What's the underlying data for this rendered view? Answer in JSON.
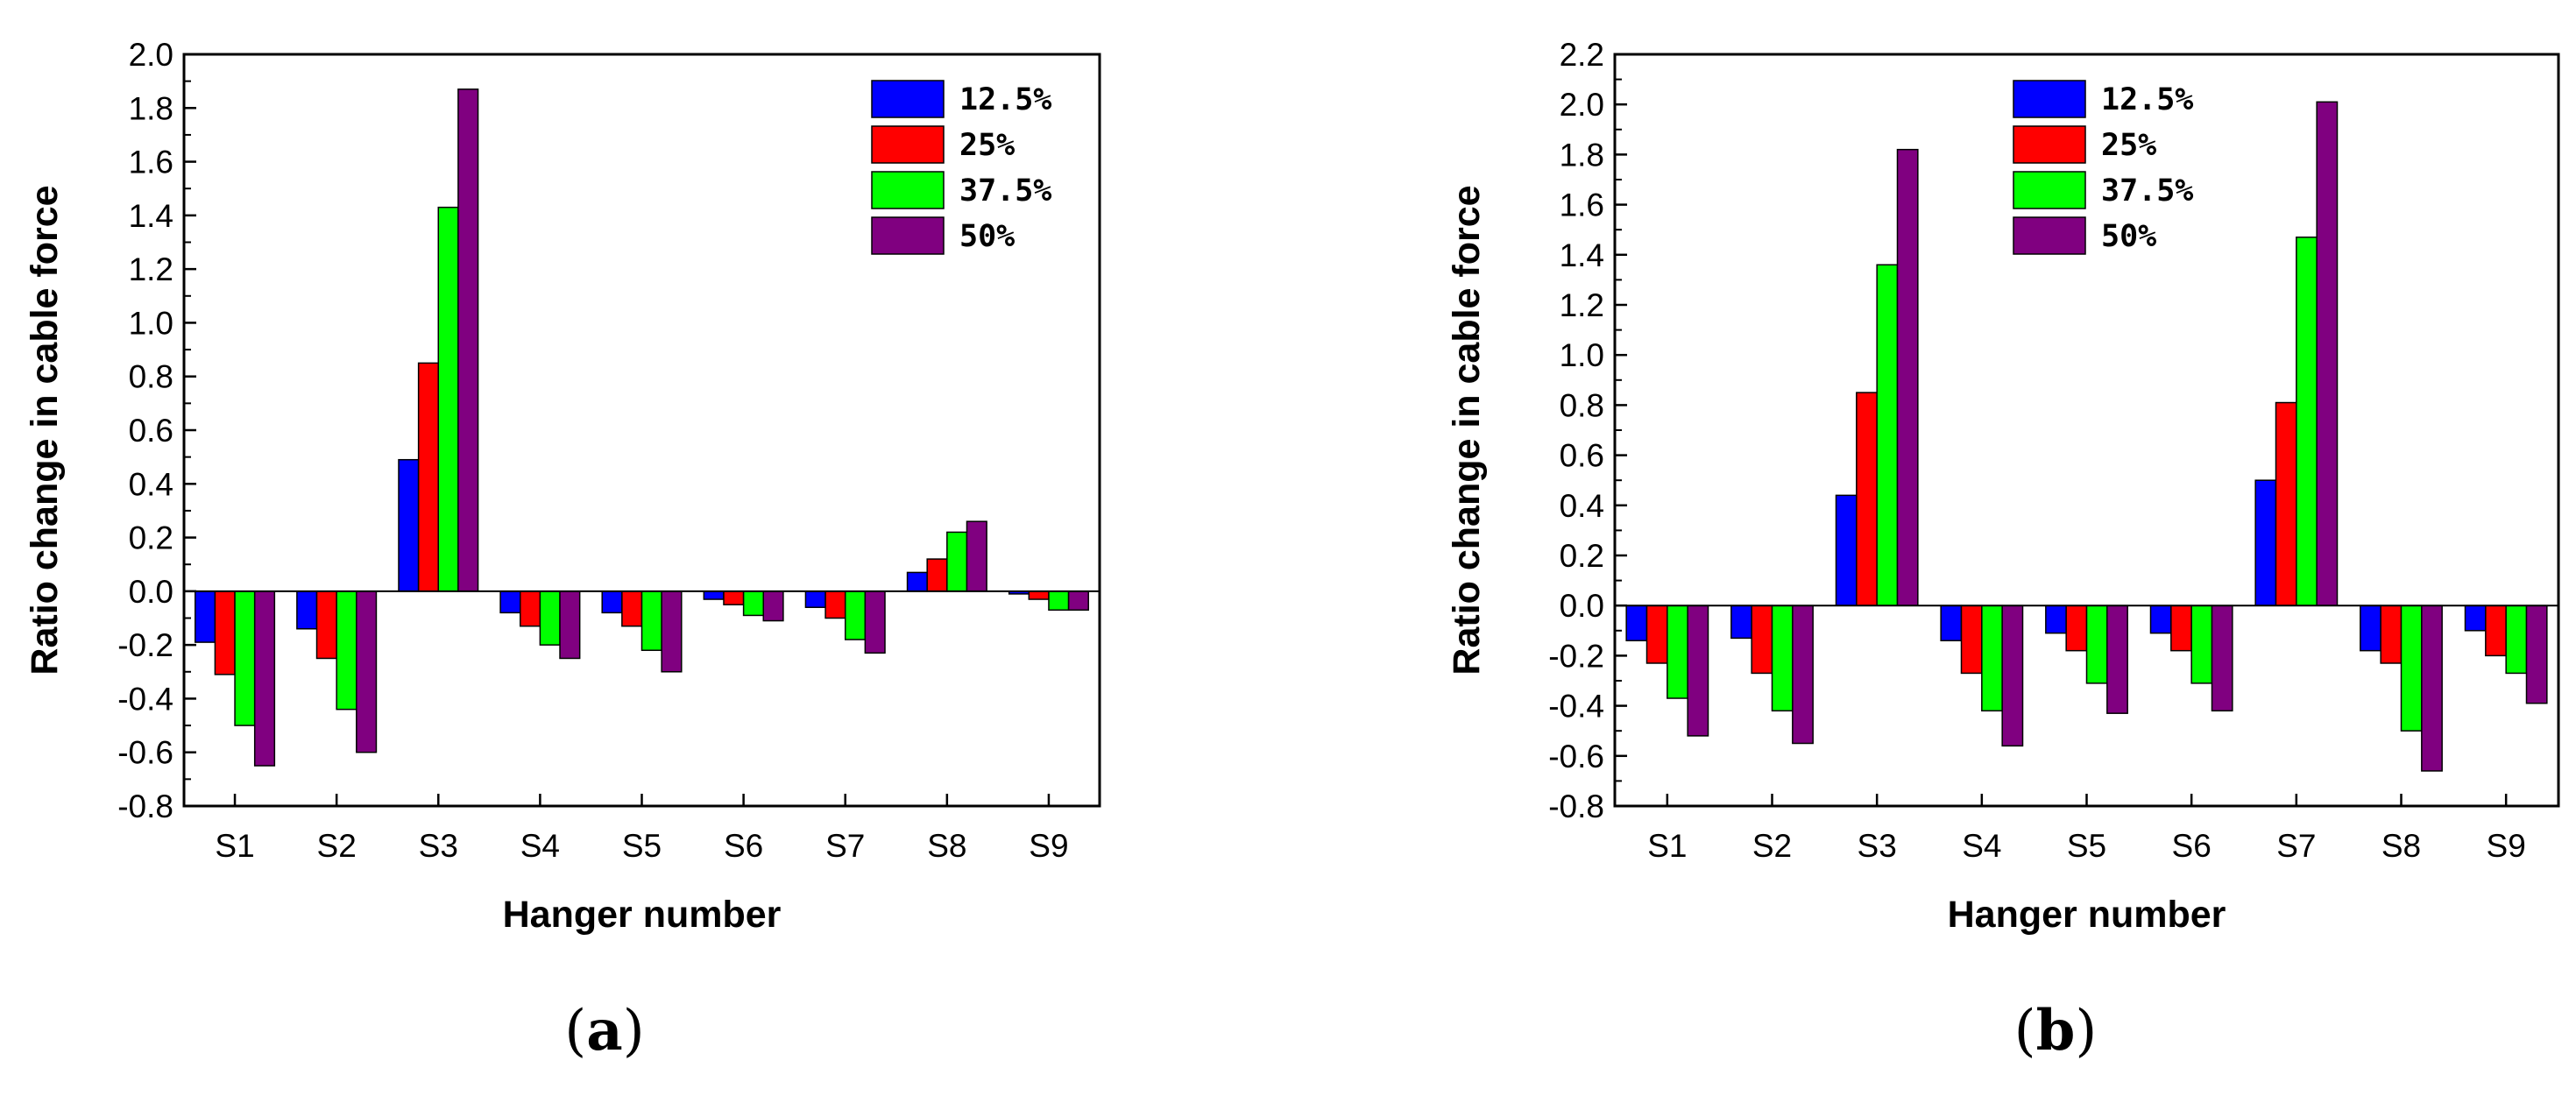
{
  "chart_data": [
    {
      "type": "bar",
      "panel_label": "a",
      "xlabel": "Hanger number",
      "ylabel": "Ratio change in cable force",
      "categories": [
        "S1",
        "S2",
        "S3",
        "S4",
        "S5",
        "S6",
        "S7",
        "S8",
        "S9"
      ],
      "ylim": [
        -0.8,
        2.0
      ],
      "yticks": [
        "-0.8",
        "-0.6",
        "-0.4",
        "-0.2",
        "0.0",
        "0.2",
        "0.4",
        "0.6",
        "0.8",
        "1.0",
        "1.2",
        "1.4",
        "1.6",
        "1.8",
        "2.0"
      ],
      "grid": false,
      "legend_position": "top-right",
      "series": [
        {
          "name": "12.5%",
          "color": "#0000ff",
          "values": [
            -0.19,
            -0.14,
            0.49,
            -0.08,
            -0.08,
            -0.03,
            -0.06,
            0.07,
            -0.01
          ]
        },
        {
          "name": "25%",
          "color": "#ff0000",
          "values": [
            -0.31,
            -0.25,
            0.85,
            -0.13,
            -0.13,
            -0.05,
            -0.1,
            0.12,
            -0.03
          ]
        },
        {
          "name": "37.5%",
          "color": "#00ff00",
          "values": [
            -0.5,
            -0.44,
            1.43,
            -0.2,
            -0.22,
            -0.09,
            -0.18,
            0.22,
            -0.07
          ]
        },
        {
          "name": "50%",
          "color": "#800080",
          "values": [
            -0.65,
            -0.6,
            1.87,
            -0.25,
            -0.3,
            -0.11,
            -0.23,
            0.26,
            -0.07
          ]
        }
      ]
    },
    {
      "type": "bar",
      "panel_label": "b",
      "xlabel": "Hanger number",
      "ylabel": "Ratio change in cable force",
      "categories": [
        "S1",
        "S2",
        "S3",
        "S4",
        "S5",
        "S6",
        "S7",
        "S8",
        "S9"
      ],
      "ylim": [
        -0.8,
        2.2
      ],
      "yticks": [
        "-0.8",
        "-0.6",
        "-0.4",
        "-0.2",
        "0.0",
        "0.2",
        "0.4",
        "0.6",
        "0.8",
        "1.0",
        "1.2",
        "1.4",
        "1.6",
        "1.8",
        "2.0",
        "2.2"
      ],
      "grid": false,
      "legend_position": "top-center",
      "series": [
        {
          "name": "12.5%",
          "color": "#0000ff",
          "values": [
            -0.14,
            -0.13,
            0.44,
            -0.14,
            -0.11,
            -0.11,
            0.5,
            -0.18,
            -0.1
          ]
        },
        {
          "name": "25%",
          "color": "#ff0000",
          "values": [
            -0.23,
            -0.27,
            0.85,
            -0.27,
            -0.18,
            -0.18,
            0.81,
            -0.23,
            -0.2
          ]
        },
        {
          "name": "37.5%",
          "color": "#00ff00",
          "values": [
            -0.37,
            -0.42,
            1.36,
            -0.42,
            -0.31,
            -0.31,
            1.47,
            -0.5,
            -0.27
          ]
        },
        {
          "name": "50%",
          "color": "#800080",
          "values": [
            -0.52,
            -0.55,
            1.82,
            -0.56,
            -0.43,
            -0.42,
            2.01,
            -0.66,
            -0.39
          ]
        }
      ]
    }
  ]
}
